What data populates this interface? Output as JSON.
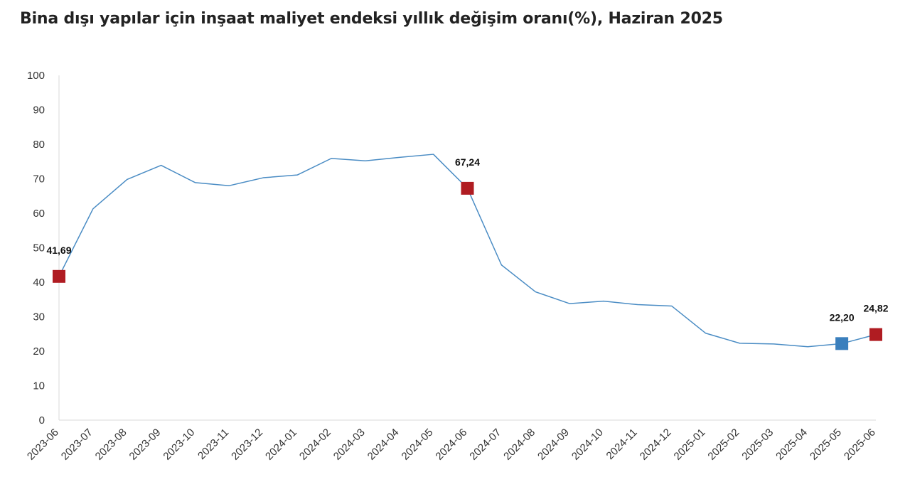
{
  "chart_data": {
    "type": "line",
    "title": "Bina dışı yapılar için inşaat maliyet endeksi yıllık değişim oranı(%), Haziran 2025",
    "xlabel": "",
    "ylabel": "",
    "ylim": [
      0,
      100
    ],
    "yticks": [
      0,
      10,
      20,
      30,
      40,
      50,
      60,
      70,
      80,
      90,
      100
    ],
    "grid": false,
    "legend": "none",
    "categories": [
      "2023-06",
      "2023-07",
      "2023-08",
      "2023-09",
      "2023-10",
      "2023-11",
      "2023-12",
      "2024-01",
      "2024-02",
      "2024-03",
      "2024-04",
      "2024-05",
      "2024-06",
      "2024-07",
      "2024-08",
      "2024-09",
      "2024-10",
      "2024-11",
      "2024-12",
      "2025-01",
      "2025-02",
      "2025-03",
      "2025-04",
      "2025-05",
      "2025-06"
    ],
    "values": [
      41.69,
      61.3,
      69.8,
      73.9,
      68.9,
      68.0,
      70.3,
      71.1,
      75.9,
      75.2,
      76.2,
      77.1,
      67.24,
      45.0,
      37.2,
      33.8,
      34.5,
      33.5,
      33.1,
      25.2,
      22.3,
      22.1,
      21.3,
      22.2,
      24.82
    ],
    "line_color": "#4a8cc4",
    "highlights": [
      {
        "index": 0,
        "label": "41,69",
        "color": "#b01c22"
      },
      {
        "index": 12,
        "label": "67,24",
        "color": "#b01c22"
      },
      {
        "index": 23,
        "label": "22,20",
        "color": "#3a7fbd"
      },
      {
        "index": 24,
        "label": "24,82",
        "color": "#b01c22"
      }
    ]
  }
}
